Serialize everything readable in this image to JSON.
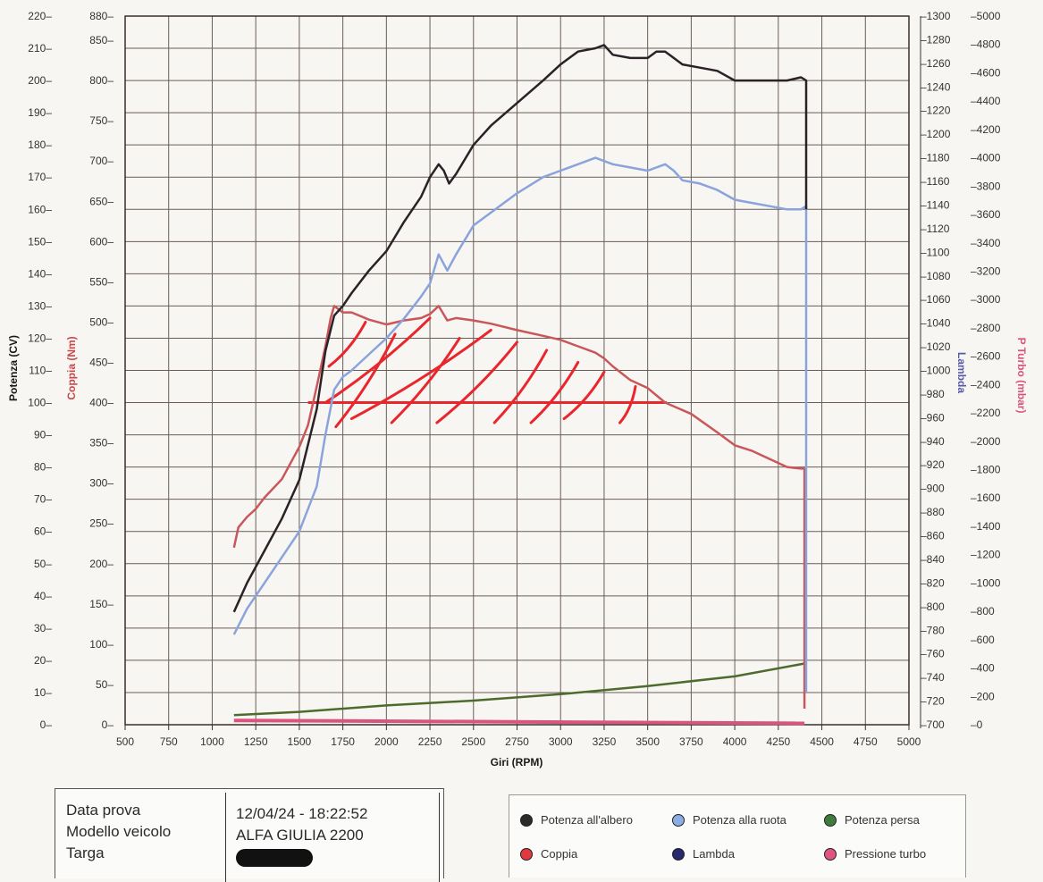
{
  "chart_data": {
    "type": "line",
    "title": "",
    "xlabel": "Giri (RPM)",
    "xlim": [
      500,
      5000
    ],
    "x_ticks": [
      "500",
      "750",
      "1000",
      "1250",
      "1500",
      "1750",
      "2000",
      "2250",
      "2500",
      "2750",
      "3000",
      "3250",
      "3500",
      "3750",
      "4000",
      "4250",
      "4500",
      "4750",
      "5000"
    ],
    "axes": {
      "left_power": {
        "label": "Potenza (CV)",
        "range": [
          0,
          220
        ],
        "ticks": [
          "0",
          "10",
          "20",
          "30",
          "40",
          "50",
          "60",
          "70",
          "80",
          "90",
          "100",
          "110",
          "120",
          "130",
          "140",
          "150",
          "160",
          "170",
          "180",
          "190",
          "200",
          "210",
          "220"
        ],
        "color": "#1a1a1a"
      },
      "left_torque": {
        "label": "Coppia (Nm)",
        "range": [
          0,
          880
        ],
        "ticks": [
          "0",
          "50",
          "100",
          "150",
          "200",
          "250",
          "300",
          "350",
          "400",
          "450",
          "500",
          "550",
          "600",
          "650",
          "700",
          "750",
          "800",
          "850",
          "880"
        ],
        "color": "#c8494b"
      },
      "right_lambda": {
        "label": "Lambda",
        "range": [
          700,
          1300
        ],
        "ticks": [
          "700",
          "720",
          "740",
          "760",
          "780",
          "800",
          "820",
          "840",
          "860",
          "880",
          "900",
          "920",
          "940",
          "960",
          "980",
          "1000",
          "1020",
          "1040",
          "1060",
          "1080",
          "1100",
          "1120",
          "1140",
          "1160",
          "1180",
          "1200",
          "1220",
          "1240",
          "1260",
          "1280",
          "1300"
        ],
        "color": "#5a5aa8"
      },
      "right_turbo": {
        "label": "P Turbo (mbar)",
        "range": [
          0,
          5000
        ],
        "ticks": [
          "0",
          "200",
          "400",
          "600",
          "800",
          "1000",
          "1200",
          "1400",
          "1600",
          "1800",
          "2000",
          "2200",
          "2400",
          "2600",
          "2800",
          "3000",
          "3200",
          "3400",
          "3600",
          "3800",
          "4000",
          "4200",
          "4400",
          "4600",
          "4800",
          "5000"
        ],
        "color": "#d9547f"
      }
    },
    "series": [
      {
        "name": "Potenza all'albero",
        "axis": "left_power",
        "unit": "CV",
        "color": "#2a2226",
        "x": [
          1125,
          1200,
          1300,
          1400,
          1500,
          1600,
          1650,
          1700,
          1750,
          1800,
          1900,
          2000,
          2100,
          2200,
          2250,
          2300,
          2330,
          2360,
          2400,
          2500,
          2600,
          2750,
          2900,
          3000,
          3100,
          3200,
          3250,
          3300,
          3400,
          3500,
          3550,
          3600,
          3650,
          3700,
          3800,
          3900,
          4000,
          4100,
          4200,
          4300,
          4380,
          4410,
          4410
        ],
        "values": [
          35,
          44,
          54,
          64,
          76,
          98,
          116,
          127,
          130,
          134,
          141,
          147,
          156,
          164,
          170,
          174,
          172,
          168,
          171,
          180,
          186,
          193,
          200,
          205,
          209,
          210,
          211,
          208,
          207,
          207,
          209,
          209,
          207,
          205,
          204,
          203,
          200,
          200,
          200,
          200,
          201,
          200,
          160
        ]
      },
      {
        "name": "Potenza alla ruota",
        "axis": "left_power",
        "unit": "CV",
        "color": "#8aa4db",
        "x": [
          1125,
          1200,
          1300,
          1400,
          1500,
          1600,
          1650,
          1700,
          1750,
          1800,
          1900,
          2000,
          2100,
          2200,
          2250,
          2300,
          2350,
          2400,
          2500,
          2600,
          2750,
          2900,
          3000,
          3100,
          3200,
          3250,
          3300,
          3400,
          3500,
          3600,
          3650,
          3700,
          3800,
          3900,
          4000,
          4100,
          4200,
          4300,
          4380,
          4410,
          4410
        ],
        "values": [
          28,
          36,
          44,
          52,
          60,
          74,
          90,
          104,
          108,
          110,
          115,
          120,
          126,
          133,
          137,
          146,
          141,
          146,
          155,
          159,
          165,
          170,
          172,
          174,
          176,
          175,
          174,
          173,
          172,
          174,
          172,
          169,
          168,
          166,
          163,
          162,
          161,
          160,
          160,
          161,
          10
        ]
      },
      {
        "name": "Coppia",
        "axis": "left_torque",
        "unit": "Nm",
        "color": "#c9575a",
        "x": [
          1125,
          1150,
          1200,
          1250,
          1300,
          1400,
          1500,
          1550,
          1600,
          1650,
          1680,
          1700,
          1750,
          1800,
          1900,
          2000,
          2100,
          2200,
          2250,
          2300,
          2350,
          2400,
          2500,
          2600,
          2750,
          2900,
          3000,
          3100,
          3200,
          3250,
          3300,
          3400,
          3500,
          3600,
          3750,
          3900,
          4000,
          4100,
          4200,
          4300,
          4380,
          4400,
          4400
        ],
        "values": [
          220,
          245,
          258,
          268,
          282,
          305,
          345,
          372,
          420,
          470,
          505,
          520,
          512,
          512,
          503,
          497,
          502,
          505,
          510,
          520,
          502,
          505,
          502,
          498,
          490,
          483,
          478,
          470,
          462,
          455,
          445,
          428,
          418,
          400,
          386,
          363,
          347,
          340,
          330,
          320,
          318,
          318,
          20
        ]
      },
      {
        "name": "Potenza persa",
        "axis": "left_power",
        "unit": "CV",
        "color": "#4e6b2e",
        "x": [
          1125,
          1500,
          2000,
          2500,
          3000,
          3500,
          4000,
          4400
        ],
        "values": [
          3,
          4,
          6,
          7.5,
          9.5,
          12,
          15,
          19
        ]
      },
      {
        "name": "Lambda",
        "axis": "right_lambda",
        "color": "#2e2e6e",
        "x": [],
        "values": []
      },
      {
        "name": "Pressione turbo",
        "axis": "right_turbo",
        "unit": "mbar",
        "color": "#d9547f",
        "x": [
          1125,
          4400
        ],
        "values": [
          30,
          10
        ]
      }
    ],
    "annotations": [
      {
        "type": "hand-drawn hatched area",
        "color": "#e8262c",
        "description": "Red hatching under torque curve above 400 Nm baseline",
        "x_range": [
          1550,
          3600
        ],
        "baseline_nm": 400
      }
    ],
    "grid": true
  },
  "info": {
    "labels": [
      "Data prova",
      "Modello veicolo",
      "Targa"
    ],
    "values": [
      "12/04/24 - 18:22:52",
      "ALFA GIULIA 2200",
      ""
    ]
  },
  "legend": [
    {
      "label": "Potenza all'albero",
      "color": "#2a2a2a"
    },
    {
      "label": "Potenza alla ruota",
      "color": "#8aaee3"
    },
    {
      "label": "Potenza persa",
      "color": "#3f7a3f"
    },
    {
      "label": "Coppia",
      "color": "#e0383e"
    },
    {
      "label": "Lambda",
      "color": "#26296b"
    },
    {
      "label": "Pressione turbo",
      "color": "#e0557f"
    }
  ]
}
